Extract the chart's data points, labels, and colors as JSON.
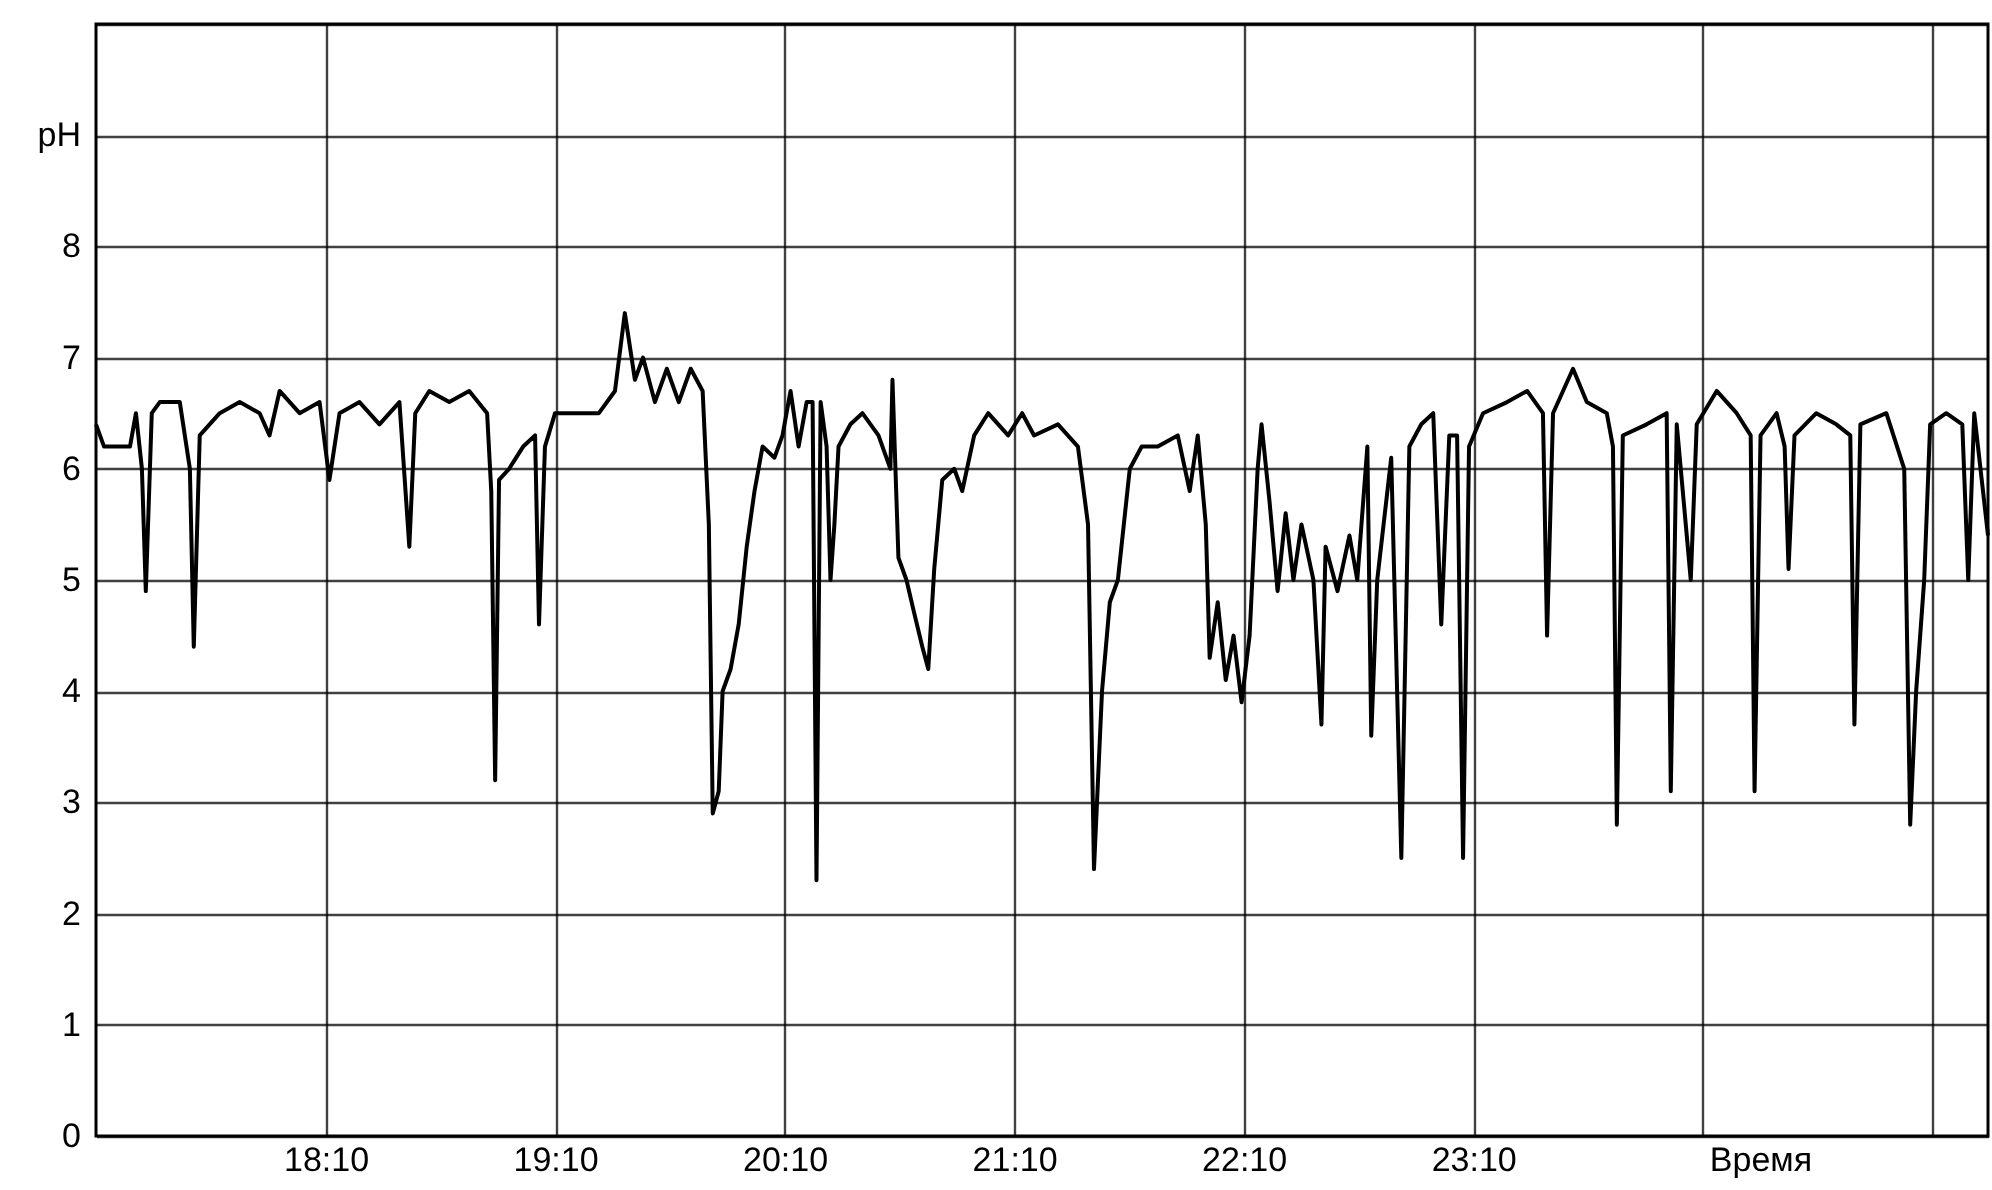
{
  "chart_data": {
    "type": "line",
    "xlabel": "Время",
    "grid": true,
    "xlim": [
      17.167,
      25.41
    ],
    "xticks": [
      {
        "value": 18.167,
        "label": "18:10"
      },
      {
        "value": 19.167,
        "label": "19:10"
      },
      {
        "value": 20.167,
        "label": "20:10"
      },
      {
        "value": 21.167,
        "label": "21:10"
      },
      {
        "value": 22.167,
        "label": "22:10"
      },
      {
        "value": 23.167,
        "label": "23:10"
      },
      {
        "value": 24.167,
        "label": null
      },
      {
        "value": 25.167,
        "label": null
      }
    ],
    "ylim": [
      0,
      10
    ],
    "yticks": [
      0,
      1,
      2,
      3,
      4,
      5,
      6,
      7,
      8,
      {
        "value": 9,
        "label": "pH"
      },
      {
        "value": 10,
        "label": null
      }
    ],
    "series": [
      {
        "color": "#000000",
        "x": [
          17.167,
          17.202,
          17.254,
          17.315,
          17.341,
          17.367,
          17.384,
          17.41,
          17.445,
          17.532,
          17.576,
          17.593,
          17.619,
          17.706,
          17.793,
          17.88,
          17.923,
          17.967,
          18.054,
          18.141,
          18.184,
          18.228,
          18.315,
          18.402,
          18.489,
          18.532,
          18.558,
          18.619,
          18.706,
          18.793,
          18.871,
          18.889,
          18.906,
          18.923,
          18.967,
          19.028,
          19.08,
          19.097,
          19.123,
          19.167,
          19.271,
          19.358,
          19.428,
          19.471,
          19.515,
          19.55,
          19.602,
          19.654,
          19.706,
          19.758,
          19.81,
          19.837,
          19.854,
          19.88,
          19.897,
          19.932,
          19.967,
          20.002,
          20.036,
          20.071,
          20.123,
          20.158,
          20.193,
          20.228,
          20.263,
          20.289,
          20.306,
          20.324,
          20.35,
          20.367,
          20.384,
          20.402,
          20.454,
          20.506,
          20.576,
          20.628,
          20.637,
          20.663,
          20.698,
          20.732,
          20.767,
          20.793,
          20.819,
          20.854,
          20.906,
          20.941,
          20.993,
          21.054,
          21.141,
          21.202,
          21.254,
          21.358,
          21.445,
          21.489,
          21.515,
          21.55,
          21.584,
          21.619,
          21.671,
          21.723,
          21.793,
          21.88,
          21.932,
          21.967,
          22.002,
          22.019,
          22.054,
          22.089,
          22.123,
          22.158,
          22.193,
          22.228,
          22.245,
          22.28,
          22.315,
          22.35,
          22.384,
          22.419,
          22.471,
          22.506,
          22.524,
          22.576,
          22.628,
          22.662,
          22.706,
          22.723,
          22.749,
          22.81,
          22.854,
          22.889,
          22.941,
          22.993,
          23.028,
          23.063,
          23.097,
          23.123,
          23.149,
          23.21,
          23.315,
          23.402,
          23.471,
          23.489,
          23.515,
          23.602,
          23.662,
          23.749,
          23.776,
          23.793,
          23.819,
          23.923,
          24.01,
          24.028,
          24.054,
          24.115,
          24.141,
          24.228,
          24.315,
          24.376,
          24.393,
          24.419,
          24.489,
          24.524,
          24.541,
          24.567,
          24.662,
          24.749,
          24.81,
          24.828,
          24.854,
          24.967,
          25.045,
          25.071,
          25.097,
          25.132,
          25.158,
          25.228,
          25.298,
          25.324,
          25.35,
          25.41
        ],
        "values": [
          6.4,
          6.2,
          6.2,
          6.2,
          6.5,
          6.0,
          4.9,
          6.5,
          6.6,
          6.6,
          6.0,
          4.4,
          6.3,
          6.5,
          6.6,
          6.5,
          6.3,
          6.7,
          6.5,
          6.6,
          5.9,
          6.5,
          6.6,
          6.4,
          6.6,
          5.3,
          6.5,
          6.7,
          6.6,
          6.7,
          6.5,
          5.8,
          3.2,
          5.9,
          6.0,
          6.2,
          6.3,
          4.6,
          6.2,
          6.5,
          6.5,
          6.5,
          6.7,
          7.4,
          6.8,
          7.0,
          6.6,
          6.9,
          6.6,
          6.9,
          6.7,
          5.5,
          2.9,
          3.1,
          4.0,
          4.2,
          4.6,
          5.3,
          5.8,
          6.2,
          6.1,
          6.3,
          6.7,
          6.2,
          6.6,
          6.6,
          2.3,
          6.6,
          6.2,
          5.0,
          5.5,
          6.2,
          6.4,
          6.5,
          6.3,
          6.0,
          6.8,
          5.2,
          5.0,
          4.7,
          4.4,
          4.2,
          5.1,
          5.9,
          6.0,
          5.8,
          6.3,
          6.5,
          6.3,
          6.5,
          6.3,
          6.4,
          6.2,
          5.5,
          2.4,
          4.0,
          4.8,
          5.0,
          6.0,
          6.2,
          6.2,
          6.3,
          5.8,
          6.3,
          5.5,
          4.3,
          4.8,
          4.1,
          4.5,
          3.9,
          4.5,
          6.0,
          6.4,
          5.7,
          4.9,
          5.6,
          5.0,
          5.5,
          5.0,
          3.7,
          5.3,
          4.9,
          5.4,
          5.0,
          6.2,
          3.6,
          5.0,
          6.1,
          2.5,
          6.2,
          6.4,
          6.5,
          4.6,
          6.3,
          6.3,
          2.5,
          6.2,
          6.5,
          6.6,
          6.7,
          6.5,
          4.5,
          6.5,
          6.9,
          6.6,
          6.5,
          6.2,
          2.8,
          6.3,
          6.4,
          6.5,
          3.1,
          6.4,
          5.0,
          6.4,
          6.7,
          6.5,
          6.3,
          3.1,
          6.3,
          6.5,
          6.2,
          5.1,
          6.3,
          6.5,
          6.4,
          6.3,
          3.7,
          6.4,
          6.5,
          6.0,
          2.8,
          4.0,
          5.0,
          6.4,
          6.5,
          6.4,
          5.0,
          6.5,
          5.4
        ]
      }
    ]
  }
}
